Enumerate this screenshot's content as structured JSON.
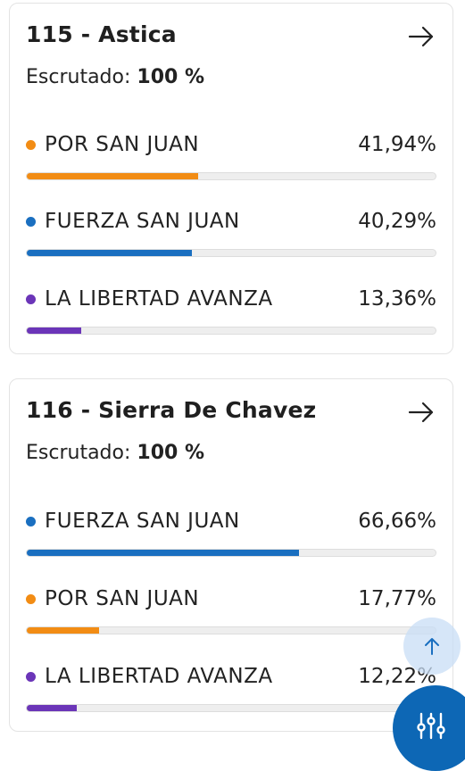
{
  "cards": [
    {
      "title": "115 - Astica",
      "scrutiny_label": "Escrutado:",
      "scrutiny_value": "100 %",
      "parties": [
        {
          "name": "POR SAN JUAN",
          "percent": "41,94%",
          "fill": 0.4194,
          "color": "#f28c14"
        },
        {
          "name": "FUERZA SAN JUAN",
          "percent": "40,29%",
          "fill": 0.4029,
          "color": "#1a6fc0"
        },
        {
          "name": "LA LIBERTAD AVANZA",
          "percent": "13,36%",
          "fill": 0.1336,
          "color": "#6b35b8"
        }
      ]
    },
    {
      "title": "116 - Sierra De Chavez",
      "scrutiny_label": "Escrutado:",
      "scrutiny_value": "100 %",
      "parties": [
        {
          "name": "FUERZA SAN JUAN",
          "percent": "66,66%",
          "fill": 0.6666,
          "color": "#1a6fc0"
        },
        {
          "name": "POR SAN JUAN",
          "percent": "17,77%",
          "fill": 0.1777,
          "color": "#f28c14"
        },
        {
          "name": "LA LIBERTAD AVANZA",
          "percent": "12,22%",
          "fill": 0.1222,
          "color": "#6b35b8"
        }
      ]
    }
  ],
  "icons": {
    "card_link": "arrow-right-icon",
    "scroll_top": "arrow-up-icon",
    "filter": "sliders-icon"
  },
  "colors": {
    "fab_background": "#0d67b5",
    "scroll_top_background": "#c8def6",
    "card_border": "#e3e3e3",
    "bar_track": "#eeeeee"
  }
}
